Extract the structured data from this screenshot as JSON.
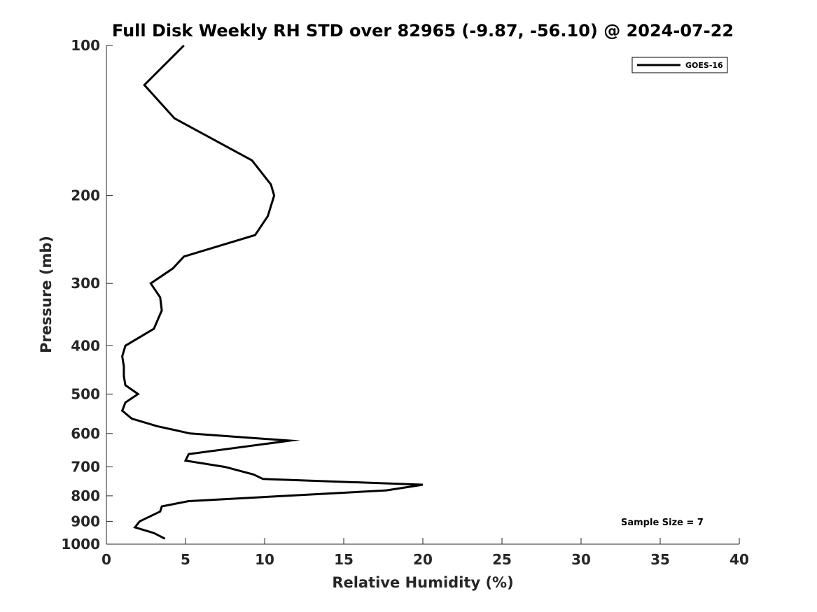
{
  "chart_data": {
    "type": "line",
    "title": "Full Disk Weekly RH STD over 82965 (-9.87, -56.10) @ 2024-07-22",
    "xlabel": "Relative Humidity (%)",
    "ylabel": "Pressure (mb)",
    "xlim": [
      0,
      40
    ],
    "ylim": [
      100,
      1000
    ],
    "yscale": "log",
    "y_reversed": true,
    "grid": false,
    "legend_position": "top-right",
    "x_ticks": [
      {
        "value": 0,
        "label": "0"
      },
      {
        "value": 5,
        "label": "5"
      },
      {
        "value": 10,
        "label": "10"
      },
      {
        "value": 15,
        "label": "15"
      },
      {
        "value": 20,
        "label": "20"
      },
      {
        "value": 25,
        "label": "25"
      },
      {
        "value": 30,
        "label": "30"
      },
      {
        "value": 35,
        "label": "35"
      },
      {
        "value": 40,
        "label": "40"
      }
    ],
    "y_ticks": [
      {
        "value": 100,
        "label": "100"
      },
      {
        "value": 200,
        "label": "200"
      },
      {
        "value": 300,
        "label": "300"
      },
      {
        "value": 400,
        "label": "400"
      },
      {
        "value": 500,
        "label": "500"
      },
      {
        "value": 600,
        "label": "600"
      },
      {
        "value": 700,
        "label": "700"
      },
      {
        "value": 800,
        "label": "800"
      },
      {
        "value": 900,
        "label": "900"
      },
      {
        "value": 1000,
        "label": "1000"
      }
    ],
    "series": [
      {
        "name": "GOES-16",
        "color": "#000000",
        "points": [
          {
            "x": 4.9,
            "p": 100
          },
          {
            "x": 2.4,
            "p": 120
          },
          {
            "x": 4.3,
            "p": 140
          },
          {
            "x": 9.2,
            "p": 170
          },
          {
            "x": 10.4,
            "p": 190
          },
          {
            "x": 10.6,
            "p": 200
          },
          {
            "x": 10.2,
            "p": 220
          },
          {
            "x": 9.4,
            "p": 240
          },
          {
            "x": 4.9,
            "p": 265
          },
          {
            "x": 4.2,
            "p": 280
          },
          {
            "x": 2.8,
            "p": 300
          },
          {
            "x": 3.4,
            "p": 320
          },
          {
            "x": 3.5,
            "p": 340
          },
          {
            "x": 3.0,
            "p": 370
          },
          {
            "x": 1.2,
            "p": 400
          },
          {
            "x": 1.0,
            "p": 420
          },
          {
            "x": 1.1,
            "p": 440
          },
          {
            "x": 1.1,
            "p": 460
          },
          {
            "x": 1.2,
            "p": 480
          },
          {
            "x": 2.0,
            "p": 500
          },
          {
            "x": 1.2,
            "p": 520
          },
          {
            "x": 1.0,
            "p": 540
          },
          {
            "x": 1.6,
            "p": 560
          },
          {
            "x": 3.2,
            "p": 580
          },
          {
            "x": 5.3,
            "p": 600
          },
          {
            "x": 11.6,
            "p": 620
          },
          {
            "x": 5.2,
            "p": 660
          },
          {
            "x": 5.0,
            "p": 680
          },
          {
            "x": 7.5,
            "p": 700
          },
          {
            "x": 9.3,
            "p": 725
          },
          {
            "x": 9.9,
            "p": 740
          },
          {
            "x": 20.0,
            "p": 760
          },
          {
            "x": 17.7,
            "p": 780
          },
          {
            "x": 5.2,
            "p": 820
          },
          {
            "x": 3.5,
            "p": 840
          },
          {
            "x": 3.4,
            "p": 860
          },
          {
            "x": 2.1,
            "p": 900
          },
          {
            "x": 1.8,
            "p": 925
          },
          {
            "x": 3.0,
            "p": 950
          },
          {
            "x": 3.7,
            "p": 975
          }
        ]
      }
    ],
    "annotations": [
      {
        "text": "Sample Size = 7"
      }
    ]
  }
}
